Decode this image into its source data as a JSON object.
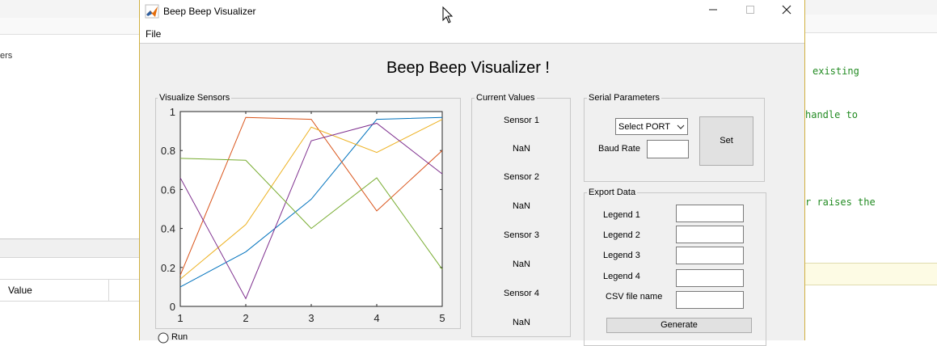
{
  "background": {
    "left_fragment": "ers",
    "left_value_header": "Value",
    "right_code": [
      "existing",
      "handle to",
      "r raises the"
    ]
  },
  "window": {
    "title": "Beep Beep Visualizer",
    "menu": [
      "File"
    ],
    "app_title": "Beep Beep Visualizer !"
  },
  "visualize_panel": {
    "label": "Visualize Sensors",
    "run_label": "Run"
  },
  "chart_data": {
    "type": "line",
    "x": [
      1,
      2,
      3,
      4,
      5
    ],
    "xlim": [
      1,
      5
    ],
    "ylim": [
      0,
      1
    ],
    "xticks": [
      "1",
      "2",
      "3",
      "4",
      "5"
    ],
    "yticks": [
      "0",
      "0.2",
      "0.4",
      "0.6",
      "0.8",
      "1"
    ],
    "series": [
      {
        "color": "#0072bd",
        "values": [
          0.1,
          0.28,
          0.55,
          0.96,
          0.97
        ]
      },
      {
        "color": "#d95319",
        "values": [
          0.16,
          0.97,
          0.96,
          0.49,
          0.8
        ]
      },
      {
        "color": "#edb120",
        "values": [
          0.14,
          0.42,
          0.92,
          0.79,
          0.96
        ]
      },
      {
        "color": "#7e2f8e",
        "values": [
          0.66,
          0.04,
          0.85,
          0.94,
          0.68
        ]
      },
      {
        "color": "#77ac30",
        "values": [
          0.76,
          0.75,
          0.4,
          0.66,
          0.19
        ]
      }
    ],
    "grid": false
  },
  "current_values": {
    "label": "Current Values",
    "items": [
      {
        "name": "Sensor 1",
        "value": "NaN"
      },
      {
        "name": "Sensor 2",
        "value": "NaN"
      },
      {
        "name": "Sensor 3",
        "value": "NaN"
      },
      {
        "name": "Sensor 4",
        "value": "NaN"
      }
    ]
  },
  "serial": {
    "label": "Serial Parameters",
    "port_selected": "Select PORT",
    "baud_label": "Baud Rate",
    "baud_value": "",
    "set_button": "Set"
  },
  "export": {
    "label": "Export Data",
    "fields": [
      {
        "label": "Legend 1",
        "value": ""
      },
      {
        "label": "Legend 2",
        "value": ""
      },
      {
        "label": "Legend 3",
        "value": ""
      },
      {
        "label": "Legend 4",
        "value": ""
      },
      {
        "label": "CSV file name",
        "value": ""
      }
    ],
    "generate_button": "Generate"
  }
}
